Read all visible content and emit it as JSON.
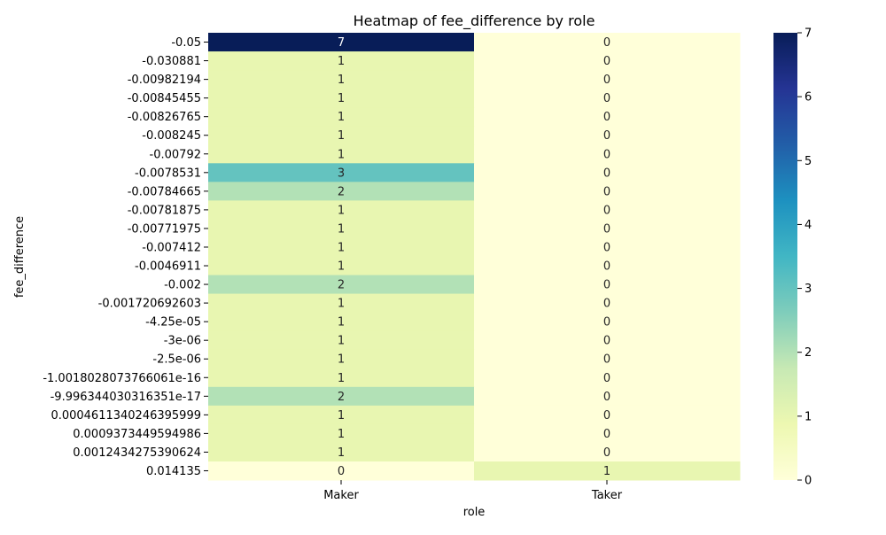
{
  "chart_data": {
    "type": "heatmap",
    "title": "Heatmap of fee_difference by role",
    "xlabel": "role",
    "ylabel": "fee_difference",
    "x_categories": [
      "Maker",
      "Taker"
    ],
    "y_categories": [
      "-0.05",
      "-0.030881",
      "-0.00982194",
      "-0.00845455",
      "-0.00826765",
      "-0.008245",
      "-0.00792",
      "-0.0078531",
      "-0.00784665",
      "-0.00781875",
      "-0.00771975",
      "-0.007412",
      "-0.0046911",
      "-0.002",
      "-0.001720692603",
      "-4.25e-05",
      "-3e-06",
      "-2.5e-06",
      "-1.0018028073766061e-16",
      "-9.996344030316351e-17",
      "0.0004611340246395999",
      "0.0009373449594986",
      "0.0012434275390624",
      "0.014135"
    ],
    "values": [
      [
        7,
        0
      ],
      [
        1,
        0
      ],
      [
        1,
        0
      ],
      [
        1,
        0
      ],
      [
        1,
        0
      ],
      [
        1,
        0
      ],
      [
        1,
        0
      ],
      [
        3,
        0
      ],
      [
        2,
        0
      ],
      [
        1,
        0
      ],
      [
        1,
        0
      ],
      [
        1,
        0
      ],
      [
        1,
        0
      ],
      [
        2,
        0
      ],
      [
        1,
        0
      ],
      [
        1,
        0
      ],
      [
        1,
        0
      ],
      [
        1,
        0
      ],
      [
        1,
        0
      ],
      [
        2,
        0
      ],
      [
        1,
        0
      ],
      [
        1,
        0
      ],
      [
        1,
        0
      ],
      [
        0,
        1
      ]
    ],
    "colorbar": {
      "min": 0,
      "max": 7,
      "ticks": [
        0,
        1,
        2,
        3,
        4,
        5,
        6,
        7
      ],
      "colormap": "YlGnBu"
    },
    "annotated": true,
    "grid": false
  }
}
